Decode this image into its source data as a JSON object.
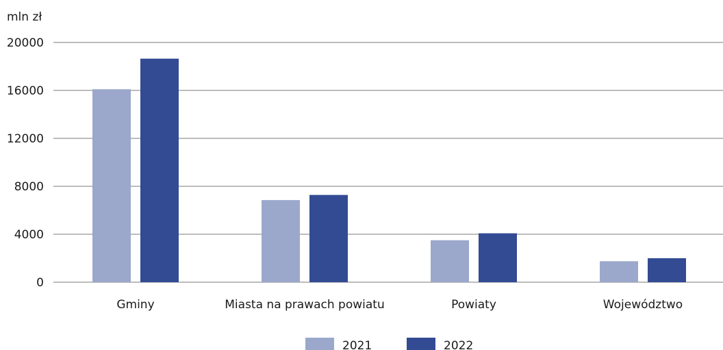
{
  "chart_data": {
    "type": "bar",
    "ylabel": "mln zł",
    "ylim": [
      0,
      20000
    ],
    "yticks": [
      "0",
      "4000",
      "8000",
      "12000",
      "16000",
      "20000"
    ],
    "categories": [
      "Gminy",
      "Miasta na prawach powiatu",
      "Powiaty",
      "Województwo"
    ],
    "series": [
      {
        "name": "2021",
        "color": "#9ba8cb",
        "values": [
          16100,
          6850,
          3500,
          1750
        ]
      },
      {
        "name": "2022",
        "color": "#334b93",
        "values": [
          18650,
          7280,
          4080,
          2000
        ]
      }
    ],
    "grid": true,
    "legend_position": "bottom-center"
  }
}
